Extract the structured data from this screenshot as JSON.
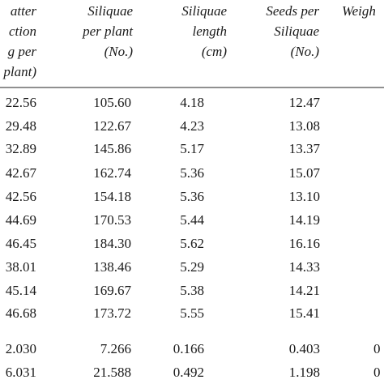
{
  "table": {
    "header": [
      [
        "atter",
        "ction",
        "g per",
        "plant)"
      ],
      [
        "Siliquae",
        "per plant",
        "(No.)"
      ],
      [
        "Siliquae",
        "length",
        "(cm)"
      ],
      [
        "Seeds per",
        "Siliquae",
        "(No.)"
      ],
      [
        "Weigh"
      ]
    ],
    "rows": [
      [
        "22.56",
        "105.60",
        "4.18",
        "12.47"
      ],
      [
        "29.48",
        "122.67",
        "4.23",
        "13.08"
      ],
      [
        "32.89",
        "145.86",
        "5.17",
        "13.37"
      ],
      [
        "42.67",
        "162.74",
        "5.36",
        "15.07"
      ],
      [
        "42.56",
        "154.18",
        "5.36",
        "13.10"
      ],
      [
        "44.69",
        "170.53",
        "5.44",
        "14.19"
      ],
      [
        "46.45",
        "184.30",
        "5.62",
        "16.16"
      ],
      [
        "38.01",
        "138.46",
        "5.29",
        "14.33"
      ],
      [
        "45.14",
        "169.67",
        "5.38",
        "14.21"
      ],
      [
        "46.68",
        "173.72",
        "5.55",
        "15.41"
      ],
      [
        "2.030",
        "7.266",
        "0.166",
        "0.403",
        "0"
      ],
      [
        "6.031",
        "21.588",
        "0.492",
        "1.198",
        "0"
      ]
    ]
  }
}
